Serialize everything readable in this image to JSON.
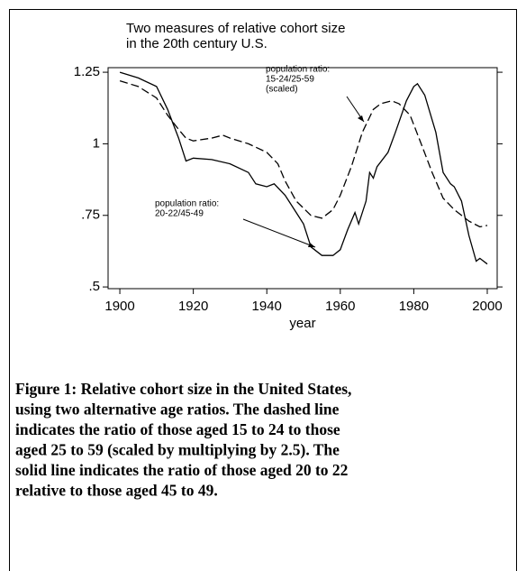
{
  "chart_data": {
    "type": "line",
    "title": [
      "Two measures of relative cohort size",
      "in the 20th century U.S."
    ],
    "x_label": "year",
    "xlim": [
      1896.8,
      2002.7
    ],
    "xticks": [
      1900,
      1920,
      1940,
      1960,
      1980,
      2000
    ],
    "ylim": [
      0.494,
      1.266
    ],
    "yticks": [
      1.25,
      1,
      {
        "value": 0.75,
        "label": ".75"
      },
      {
        "value": 0.5,
        "label": ".5"
      }
    ],
    "series": [
      {
        "name": "population ratio: 20-22/45-49",
        "color": "#000",
        "dash": "none",
        "x": [
          1900,
          1905,
          1910,
          1913,
          1916,
          1918,
          1920,
          1925,
          1930,
          1935,
          1937,
          1940,
          1942,
          1945,
          1948,
          1950,
          1952,
          1955,
          1958,
          1960,
          1962,
          1964,
          1965,
          1967,
          1968,
          1969,
          1970,
          1973,
          1975,
          1978,
          1980,
          1981,
          1983,
          1986,
          1988,
          1990,
          1991,
          1993,
          1995,
          1997,
          1998,
          2000
        ],
        "values": [
          1.25,
          1.23,
          1.2,
          1.12,
          1.02,
          0.94,
          0.95,
          0.945,
          0.93,
          0.9,
          0.86,
          0.85,
          0.86,
          0.82,
          0.76,
          0.72,
          0.64,
          0.61,
          0.61,
          0.63,
          0.7,
          0.76,
          0.72,
          0.8,
          0.9,
          0.88,
          0.92,
          0.97,
          1.04,
          1.15,
          1.2,
          1.21,
          1.17,
          1.04,
          0.9,
          0.86,
          0.85,
          0.8,
          0.68,
          0.59,
          0.6,
          0.58
        ]
      },
      {
        "name": "population ratio: 15-24/25-59 (scaled)",
        "color": "#000",
        "dash": "9 4",
        "x": [
          1900,
          1905,
          1910,
          1913,
          1916,
          1918,
          1920,
          1925,
          1928,
          1930,
          1935,
          1940,
          1943,
          1945,
          1948,
          1952,
          1955,
          1958,
          1960,
          1963,
          1966,
          1969,
          1971,
          1974,
          1976,
          1979,
          1982,
          1985,
          1988,
          1991,
          1995,
          1998,
          2000
        ],
        "values": [
          1.22,
          1.2,
          1.16,
          1.1,
          1.05,
          1.02,
          1.01,
          1.02,
          1.03,
          1.02,
          1.0,
          0.97,
          0.93,
          0.87,
          0.8,
          0.75,
          0.74,
          0.77,
          0.82,
          0.92,
          1.04,
          1.12,
          1.14,
          1.15,
          1.14,
          1.1,
          1.0,
          0.9,
          0.81,
          0.77,
          0.73,
          0.71,
          0.715
        ]
      }
    ],
    "annotations": [
      {
        "lines": [
          "population ratio:",
          "15-24/25-59",
          " (scaled)"
        ]
      },
      {
        "lines": [
          "population ratio:",
          "20-22/45-49"
        ]
      }
    ],
    "caption": [
      "Figure 1: Relative cohort size in the United States,",
      "using two alternative age ratios.  The dashed line",
      "indicates the ratio of those aged 15 to 24 to those",
      "aged 25 to 59 (scaled by multiplying by 2.5).  The",
      "solid line indicates the ratio of those aged 20 to 22",
      "relative to those aged 45 to 49."
    ]
  }
}
